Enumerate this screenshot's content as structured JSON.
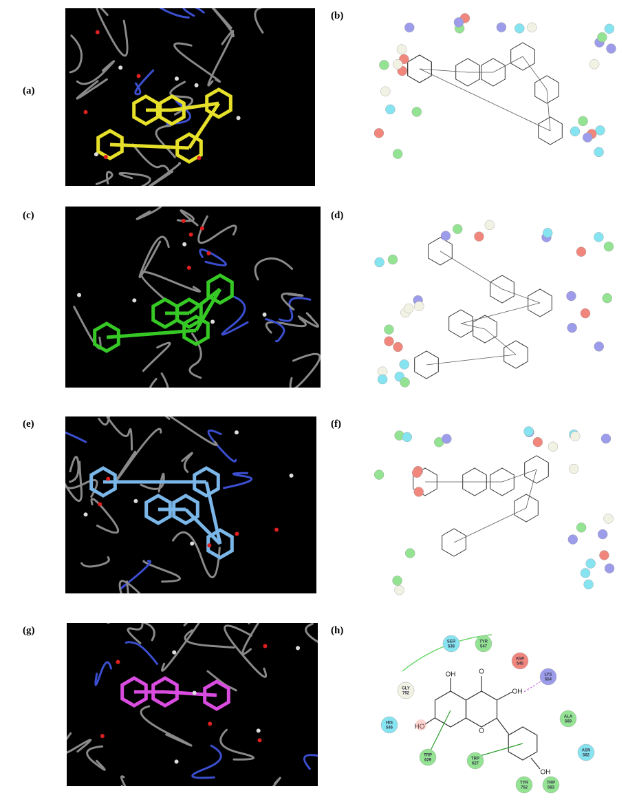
{
  "panels": [
    {
      "label": "(a)"
    },
    {
      "label": "(b)"
    },
    {
      "label": "(c)"
    },
    {
      "label": "(d)"
    },
    {
      "label": "(e)"
    },
    {
      "label": "(f)"
    },
    {
      "label": "(g)"
    },
    {
      "label": "(h)"
    }
  ],
  "panel_h": {
    "residues": [
      {
        "name": "SER",
        "number": "538",
        "color": "#86e3f0"
      },
      {
        "name": "TYR",
        "number": "547",
        "color": "#93e393"
      },
      {
        "name": "ASP",
        "number": "545",
        "color": "#f0867c"
      },
      {
        "name": "LYS",
        "number": "554",
        "color": "#9c9cea"
      },
      {
        "name": "GLY",
        "number": "792",
        "color": "#f2f2e4"
      },
      {
        "name": "HIS",
        "number": "546",
        "color": "#86e3f0"
      },
      {
        "name": "ALA",
        "number": "569",
        "color": "#93e393"
      },
      {
        "name": "ASN",
        "number": "562",
        "color": "#86e3f0"
      },
      {
        "name": "TRP",
        "number": "629",
        "color": "#93e393"
      },
      {
        "name": "TRP",
        "number": "627",
        "color": "#93e393"
      },
      {
        "name": "TYR",
        "number": "752",
        "color": "#93e393"
      },
      {
        "name": "TRP",
        "number": "583",
        "color": "#93e393"
      }
    ],
    "ligand_labels": [
      "OH",
      "O",
      "OH",
      "HO",
      "O",
      "OH"
    ]
  }
}
